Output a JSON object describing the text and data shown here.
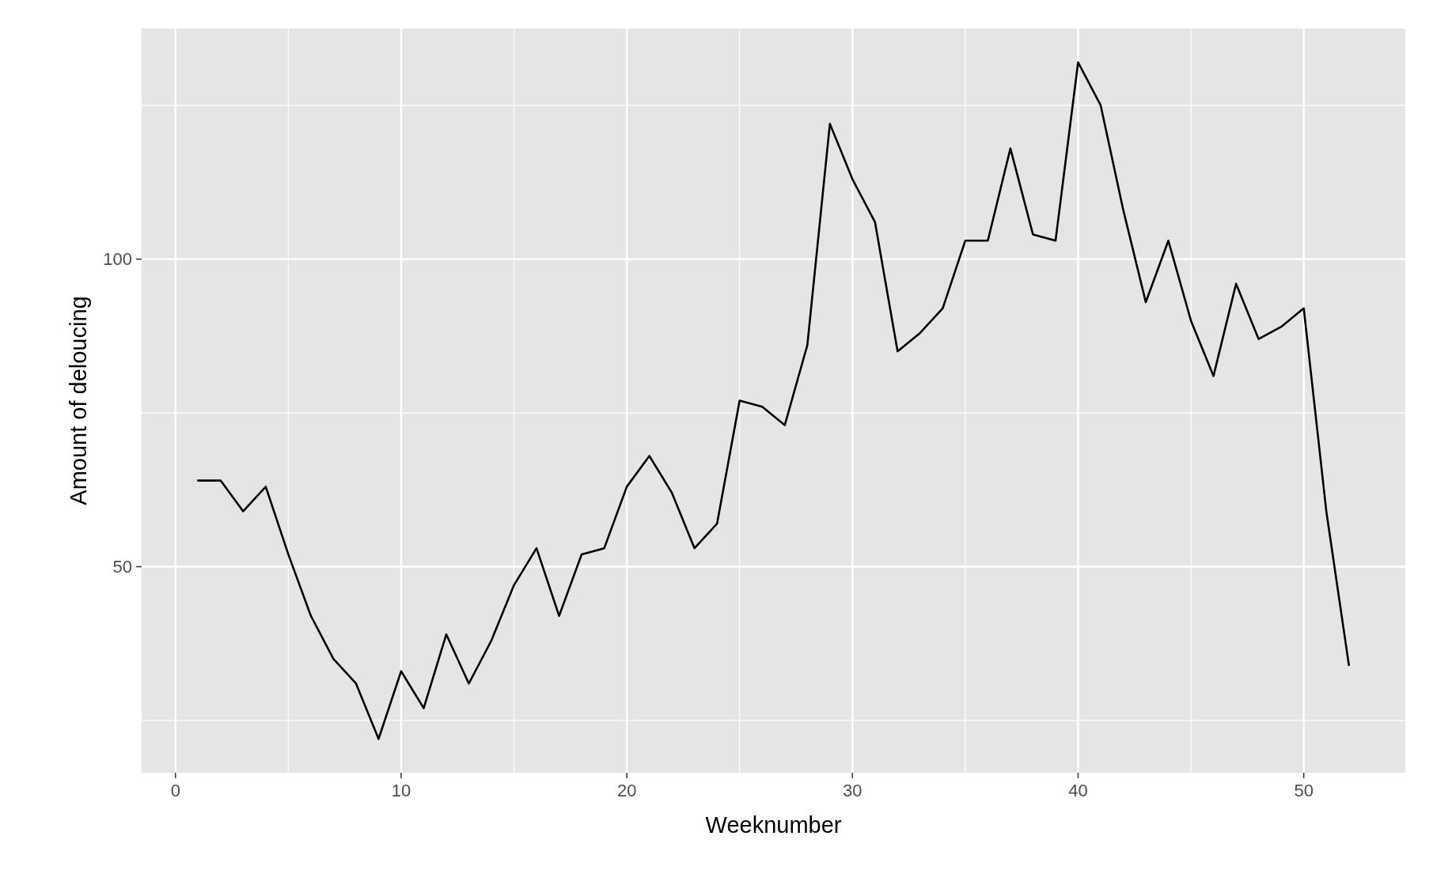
{
  "chart_data": {
    "type": "line",
    "xlabel": "Weeknumber",
    "ylabel": "Amount of deloucing",
    "x": [
      1,
      2,
      3,
      4,
      5,
      6,
      7,
      8,
      9,
      10,
      11,
      12,
      13,
      14,
      15,
      16,
      17,
      18,
      19,
      20,
      21,
      22,
      23,
      24,
      25,
      26,
      27,
      28,
      29,
      30,
      31,
      32,
      33,
      34,
      35,
      36,
      37,
      38,
      39,
      40,
      41,
      42,
      43,
      44,
      45,
      46,
      47,
      48,
      49,
      50,
      51,
      52
    ],
    "series": [
      {
        "color": "#000000",
        "values": [
          64,
          64,
          59,
          63,
          52,
          42,
          35,
          31,
          22,
          33,
          27,
          39,
          31,
          38,
          47,
          53,
          42,
          52,
          53,
          63,
          68,
          62,
          53,
          57,
          77,
          76,
          73,
          86,
          122,
          113,
          106,
          85,
          88,
          92,
          103,
          103,
          118,
          104,
          103,
          132,
          125,
          108,
          93,
          103,
          90,
          81,
          96,
          87,
          89,
          92,
          59,
          34
        ]
      }
    ],
    "xlim": [
      -1.5,
      54.5
    ],
    "xticks": [
      0,
      {
        "value": 5,
        "label": null
      },
      10,
      {
        "value": 15,
        "label": null
      },
      20,
      {
        "value": 25,
        "label": null
      },
      30,
      {
        "value": 35,
        "label": null
      },
      40,
      {
        "value": 45,
        "label": null
      },
      50
    ],
    "ylim": [
      16.5,
      137.5
    ],
    "yticks": [
      {
        "value": 25,
        "label": null
      },
      50,
      {
        "value": 75,
        "label": null
      },
      100,
      {
        "value": 125,
        "label": null
      }
    ],
    "grid": true,
    "marker": "none",
    "line_style": "solid"
  }
}
